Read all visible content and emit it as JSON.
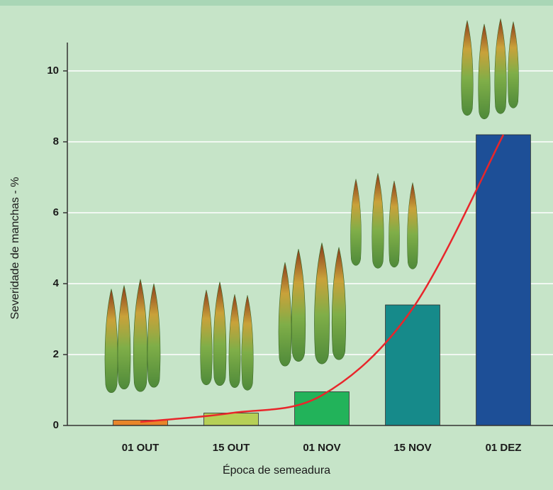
{
  "chart_data": {
    "type": "bar",
    "x_label": "Época de semeadura",
    "y_label": "Severidade de manchas - %",
    "categories": [
      "01 OUT",
      "15 OUT",
      "01 NOV",
      "15 NOV",
      "01 DEZ"
    ],
    "values": [
      0.15,
      0.35,
      0.95,
      3.4,
      8.2
    ],
    "colors": [
      "#e8852a",
      "#b6cf56",
      "#22b35a",
      "#168a8a",
      "#1d4f97"
    ],
    "trend": {
      "color": "#e8262b",
      "values": [
        0.1,
        0.35,
        0.85,
        3.3,
        8.2
      ]
    },
    "ylim": [
      0,
      11.6
    ],
    "yticks": [
      0,
      2,
      4,
      6,
      8,
      10
    ],
    "grid": true
  }
}
